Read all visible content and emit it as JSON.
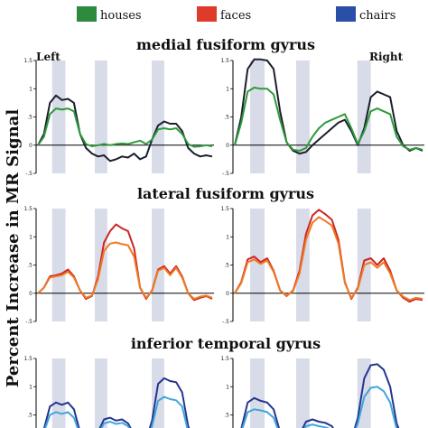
{
  "legend": [
    {
      "label": "houses",
      "color": "#2e8b3e"
    },
    {
      "label": "faces",
      "color": "#e03a2a"
    },
    {
      "label": "chairs",
      "color": "#2a4fa8"
    }
  ],
  "ylabel": "Percent Increase in MR Signal",
  "side_labels": {
    "left": "Left",
    "right": "Right"
  },
  "block_color": "#d8dbe8",
  "chart_data": [
    {
      "type": "line",
      "title": "medial fusiform gyrus",
      "ylim": [
        -0.5,
        1.5
      ],
      "yticks": [
        "1.5",
        "1",
        ".5",
        "0",
        "-.5"
      ],
      "panels": [
        {
          "side": "left",
          "series": [
            {
              "color": "#1a1f2b",
              "values": [
                0,
                0.2,
                0.75,
                0.88,
                0.8,
                0.82,
                0.75,
                0.2,
                -0.05,
                -0.15,
                -0.2,
                -0.18,
                -0.28,
                -0.25,
                -0.2,
                -0.22,
                -0.15,
                -0.25,
                -0.2,
                0.1,
                0.35,
                0.42,
                0.38,
                0.38,
                0.25,
                -0.05,
                -0.15,
                -0.2,
                -0.18,
                -0.2
              ]
            },
            {
              "color": "#2e9a3a",
              "values": [
                0,
                0.15,
                0.55,
                0.65,
                0.63,
                0.65,
                0.6,
                0.2,
                0.02,
                -0.02,
                0,
                0.02,
                0,
                0.02,
                0.03,
                0.02,
                0.05,
                0.08,
                0.02,
                0.1,
                0.28,
                0.3,
                0.28,
                0.3,
                0.2,
                0.02,
                -0.03,
                -0.02,
                0,
                -0.02
              ]
            }
          ]
        },
        {
          "side": "right",
          "series": [
            {
              "color": "#1a1f2b",
              "values": [
                0,
                0.5,
                1.35,
                1.52,
                1.52,
                1.5,
                1.35,
                0.6,
                0.05,
                -0.1,
                -0.15,
                -0.12,
                0,
                0.1,
                0.2,
                0.3,
                0.4,
                0.45,
                0.25,
                0.0,
                0.3,
                0.85,
                0.95,
                0.9,
                0.85,
                0.25,
                0.0,
                -0.1,
                -0.05,
                -0.1
              ]
            },
            {
              "color": "#2e9a3a",
              "values": [
                0,
                0.4,
                0.95,
                1.02,
                1.0,
                1.0,
                0.9,
                0.45,
                0.05,
                -0.08,
                -0.1,
                -0.05,
                0.15,
                0.3,
                0.4,
                0.45,
                0.5,
                0.55,
                0.3,
                0.02,
                0.25,
                0.6,
                0.65,
                0.6,
                0.55,
                0.15,
                -0.02,
                -0.08,
                -0.05,
                -0.08
              ]
            }
          ]
        }
      ]
    },
    {
      "type": "line",
      "title": "lateral fusiform gyrus",
      "ylim": [
        -0.5,
        1.5
      ],
      "yticks": [
        "1.5",
        "1",
        ".5",
        "0",
        "-.5"
      ],
      "panels": [
        {
          "side": "left",
          "series": [
            {
              "color": "#cf2525",
              "values": [
                0,
                0.1,
                0.3,
                0.32,
                0.35,
                0.42,
                0.3,
                0.05,
                -0.1,
                -0.05,
                0.3,
                0.9,
                1.1,
                1.22,
                1.15,
                1.1,
                0.8,
                0.1,
                -0.1,
                0.05,
                0.42,
                0.48,
                0.35,
                0.48,
                0.3,
                0.0,
                -0.12,
                -0.08,
                -0.05,
                -0.1
              ]
            },
            {
              "color": "#ee7a22",
              "values": [
                0,
                0.1,
                0.28,
                0.3,
                0.32,
                0.38,
                0.28,
                0.05,
                -0.08,
                -0.04,
                0.25,
                0.75,
                0.88,
                0.9,
                0.87,
                0.85,
                0.65,
                0.1,
                -0.08,
                0.04,
                0.4,
                0.45,
                0.32,
                0.45,
                0.28,
                0.0,
                -0.1,
                -0.06,
                -0.04,
                -0.08
              ]
            }
          ]
        },
        {
          "side": "right",
          "series": [
            {
              "color": "#cf2525",
              "values": [
                0,
                0.2,
                0.6,
                0.65,
                0.55,
                0.62,
                0.4,
                0.05,
                -0.05,
                0.05,
                0.4,
                1.05,
                1.38,
                1.48,
                1.4,
                1.3,
                0.95,
                0.2,
                -0.1,
                0.1,
                0.58,
                0.62,
                0.5,
                0.62,
                0.4,
                0.05,
                -0.08,
                -0.15,
                -0.1,
                -0.12
              ]
            },
            {
              "color": "#ee7a22",
              "values": [
                0,
                0.18,
                0.55,
                0.6,
                0.52,
                0.58,
                0.38,
                0.05,
                -0.04,
                0.04,
                0.35,
                0.95,
                1.25,
                1.35,
                1.28,
                1.2,
                0.88,
                0.18,
                -0.08,
                0.08,
                0.5,
                0.55,
                0.45,
                0.55,
                0.35,
                0.05,
                -0.06,
                -0.12,
                -0.08,
                -0.1
              ]
            }
          ]
        }
      ]
    },
    {
      "type": "line",
      "title": "inferior temporal gyrus",
      "ylim": [
        -0.5,
        1.5
      ],
      "yticks": [
        "1.5",
        "1",
        ".5",
        "0",
        "-.5"
      ],
      "panels": [
        {
          "side": "left",
          "series": [
            {
              "color": "#24358f",
              "values": [
                0,
                0.25,
                0.65,
                0.72,
                0.68,
                0.72,
                0.6,
                0.2,
                0.0,
                -0.05,
                0.2,
                0.42,
                0.45,
                0.4,
                0.42,
                0.35,
                0.15,
                0.0,
                0.05,
                0.4,
                1.05,
                1.15,
                1.1,
                1.08,
                0.9,
                0.3,
                0.05,
                -0.02,
                0.0,
                -0.02
              ]
            },
            {
              "color": "#3fa6dc",
              "values": [
                0,
                0.2,
                0.5,
                0.55,
                0.52,
                0.55,
                0.45,
                0.15,
                0.0,
                -0.03,
                0.15,
                0.35,
                0.38,
                0.34,
                0.36,
                0.3,
                0.12,
                0.0,
                0.04,
                0.3,
                0.75,
                0.82,
                0.78,
                0.76,
                0.65,
                0.2,
                0.03,
                -0.01,
                0.0,
                -0.01
              ]
            }
          ]
        },
        {
          "side": "right",
          "series": [
            {
              "color": "#24358f",
              "values": [
                0,
                0.25,
                0.72,
                0.8,
                0.75,
                0.72,
                0.6,
                0.2,
                0.0,
                -0.05,
                0.15,
                0.38,
                0.42,
                0.38,
                0.36,
                0.3,
                0.1,
                0.0,
                0.05,
                0.45,
                1.15,
                1.38,
                1.4,
                1.3,
                1.0,
                0.35,
                0.05,
                -0.02,
                0.0,
                -0.02
              ]
            },
            {
              "color": "#3fa6dc",
              "values": [
                0,
                0.2,
                0.55,
                0.6,
                0.58,
                0.55,
                0.45,
                0.15,
                0.0,
                -0.03,
                0.12,
                0.3,
                0.33,
                0.3,
                0.28,
                0.24,
                0.08,
                0.0,
                0.04,
                0.35,
                0.82,
                0.98,
                1.0,
                0.92,
                0.72,
                0.25,
                0.03,
                -0.01,
                0.0,
                -0.01
              ]
            }
          ]
        }
      ]
    }
  ]
}
